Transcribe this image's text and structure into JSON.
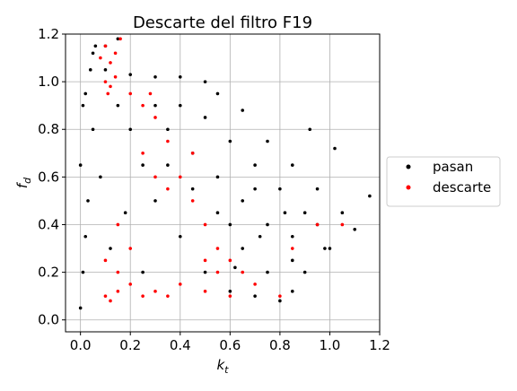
{
  "chart_data": {
    "type": "scatter",
    "title": "Descarte del filtro F19",
    "xlabel": {
      "text": "k",
      "subscript": "t"
    },
    "ylabel": {
      "text": "f",
      "subscript": "d"
    },
    "xlim": [
      -0.06,
      1.2
    ],
    "ylim": [
      -0.05,
      1.2
    ],
    "xticks": [
      {
        "value": 0,
        "label": "0.0"
      },
      {
        "value": 0.2,
        "label": "0.2"
      },
      {
        "value": 0.4,
        "label": "0.4"
      },
      {
        "value": 0.6,
        "label": "0.6"
      },
      {
        "value": 0.8,
        "label": "0.8"
      },
      {
        "value": 1.0,
        "label": "1.0"
      },
      {
        "value": 1.2,
        "label": "1.2"
      }
    ],
    "yticks": [
      {
        "value": 0,
        "label": "0.0"
      },
      {
        "value": 0.2,
        "label": "0.2"
      },
      {
        "value": 0.4,
        "label": "0.4"
      },
      {
        "value": 0.6,
        "label": "0.6"
      },
      {
        "value": 0.8,
        "label": "0.8"
      },
      {
        "value": 1.0,
        "label": "1.0"
      },
      {
        "value": 1.2,
        "label": "1.2"
      }
    ],
    "grid": true,
    "legend": "center right outside",
    "series": [
      {
        "name": "pasan",
        "color": "#000000",
        "x": [
          0.0,
          0.01,
          0.02,
          0.03,
          0.0,
          0.05,
          0.02,
          0.04,
          0.06,
          0.01,
          0.1,
          0.2,
          0.3,
          0.4,
          0.5,
          0.55,
          0.65,
          0.75,
          0.85,
          0.95,
          1.05,
          1.1,
          1.0,
          0.9,
          0.85,
          0.8,
          0.7,
          0.6,
          0.5,
          0.4,
          0.3,
          0.25,
          0.2,
          0.15,
          0.35,
          0.45,
          0.55,
          0.65,
          0.75,
          0.85,
          0.95,
          0.5,
          0.6,
          0.7,
          0.8,
          0.9,
          0.4,
          0.3,
          0.55,
          0.65,
          0.75,
          0.7,
          0.6,
          0.45,
          0.35,
          0.1,
          0.15,
          0.05,
          1.16,
          0.92,
          1.02,
          0.12,
          0.18,
          0.08,
          0.25,
          0.85,
          0.98,
          0.82,
          0.72,
          0.62
        ],
        "values": [
          0.05,
          0.2,
          0.35,
          0.5,
          0.65,
          0.8,
          0.95,
          1.05,
          1.15,
          0.9,
          1.05,
          1.03,
          1.02,
          1.02,
          1.0,
          0.95,
          0.88,
          0.75,
          0.65,
          0.55,
          0.45,
          0.38,
          0.3,
          0.2,
          0.12,
          0.08,
          0.1,
          0.12,
          0.2,
          0.35,
          0.5,
          0.65,
          0.8,
          0.9,
          0.8,
          0.7,
          0.6,
          0.5,
          0.4,
          0.35,
          0.4,
          0.85,
          0.75,
          0.65,
          0.55,
          0.45,
          0.9,
          0.9,
          0.45,
          0.3,
          0.2,
          0.55,
          0.4,
          0.55,
          0.65,
          1.15,
          1.18,
          1.12,
          0.52,
          0.8,
          0.72,
          0.3,
          0.45,
          0.6,
          0.2,
          0.25,
          0.3,
          0.45,
          0.35,
          0.22
        ]
      },
      {
        "name": "descarte",
        "color": "#ff0000",
        "x": [
          0.08,
          0.1,
          0.12,
          0.14,
          0.16,
          0.1,
          0.12,
          0.14,
          0.11,
          0.2,
          0.25,
          0.3,
          0.35,
          0.4,
          0.45,
          0.5,
          0.55,
          0.6,
          0.65,
          0.7,
          0.1,
          0.12,
          0.15,
          0.2,
          0.25,
          0.3,
          0.35,
          0.4,
          0.5,
          0.6,
          0.15,
          0.1,
          0.2,
          0.15,
          0.3,
          0.35,
          0.45,
          0.25,
          0.5,
          0.55,
          0.8,
          0.95,
          1.05,
          0.85,
          0.28
        ],
        "values": [
          1.1,
          1.15,
          1.08,
          1.12,
          1.18,
          1.0,
          0.98,
          1.02,
          0.95,
          0.95,
          0.9,
          0.85,
          0.75,
          0.6,
          0.5,
          0.4,
          0.3,
          0.25,
          0.2,
          0.15,
          0.1,
          0.08,
          0.12,
          0.15,
          0.1,
          0.12,
          0.1,
          0.15,
          0.12,
          0.1,
          0.2,
          0.25,
          0.3,
          0.4,
          0.6,
          0.55,
          0.7,
          0.7,
          0.25,
          0.2,
          0.1,
          0.4,
          0.4,
          0.3,
          0.95
        ]
      }
    ]
  }
}
